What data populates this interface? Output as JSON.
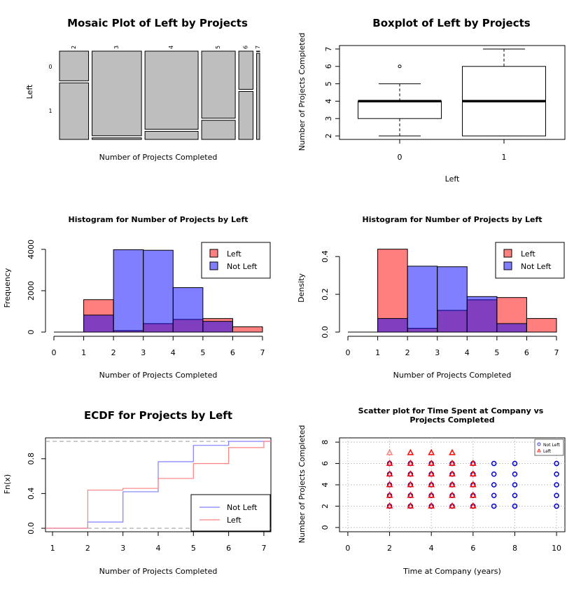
{
  "chart_data": [
    {
      "type": "mosaic",
      "title": "Mosaic Plot of Left by Projects",
      "xlabel": "Number of Projects Completed",
      "ylabel": "Left",
      "categories": [
        "2",
        "3",
        "4",
        "5",
        "6",
        "7"
      ],
      "column_totals": [
        2388,
        4055,
        4365,
        2761,
        1174,
        256
      ],
      "left_share": [
        0.656,
        0.018,
        0.094,
        0.222,
        0.557,
        1.0
      ],
      "row_labels": [
        "0",
        "1"
      ]
    },
    {
      "type": "boxplot",
      "title": "Boxplot of Left by Projects",
      "xlabel": "Left",
      "ylabel": "Number of Projects Completed",
      "categories": [
        "0",
        "1"
      ],
      "boxes": [
        {
          "min": 2,
          "q1": 3,
          "median": 4,
          "q3": 4,
          "max": 5,
          "outliers": [
            6
          ]
        },
        {
          "min": 2,
          "q1": 2,
          "median": 4,
          "q3": 6,
          "max": 7,
          "outliers": []
        }
      ],
      "ylim": [
        1.8,
        7.2
      ],
      "yticks": [
        2,
        3,
        4,
        5,
        6,
        7
      ]
    },
    {
      "type": "histogram",
      "title": "Histogram for Number of Projects by Left",
      "xlabel": "Number of Projects Completed",
      "ylabel": "Frequency",
      "bins": [
        1,
        2,
        3,
        4,
        5,
        6,
        7
      ],
      "series": [
        {
          "name": "Left",
          "color": "#ff8080",
          "values": [
            1567,
            72,
            409,
            612,
            655,
            256
          ]
        },
        {
          "name": "Not Left",
          "color": "#8080ff",
          "values": [
            821,
            3983,
            3956,
            2149,
            519,
            0
          ]
        }
      ],
      "xlim": [
        0,
        7
      ],
      "xticks": [
        0,
        1,
        2,
        3,
        4,
        5,
        6,
        7
      ],
      "yticks": [
        0,
        2000,
        4000
      ],
      "ylim": [
        0,
        4200
      ],
      "legend": "top-right"
    },
    {
      "type": "histogram",
      "title": "Histogram for Number of Projects by Left",
      "xlabel": "Number of Projects Completed",
      "ylabel": "Density",
      "bins": [
        1,
        2,
        3,
        4,
        5,
        6,
        7
      ],
      "series": [
        {
          "name": "Left",
          "color": "#ff8080",
          "values": [
            0.439,
            0.02,
            0.115,
            0.171,
            0.183,
            0.072
          ]
        },
        {
          "name": "Not Left",
          "color": "#8080ff",
          "values": [
            0.072,
            0.349,
            0.346,
            0.188,
            0.045,
            0.0
          ]
        }
      ],
      "xlim": [
        0,
        7
      ],
      "xticks": [
        0,
        1,
        2,
        3,
        4,
        5,
        6,
        7
      ],
      "yticks": [
        "0.0",
        "0.2",
        "0.4"
      ],
      "ylim": [
        0,
        0.46
      ],
      "legend": "top-right"
    },
    {
      "type": "line",
      "title": "ECDF for Projects by Left",
      "xlabel": "Number of Projects Completed",
      "ylabel": "Fn(x)",
      "series": [
        {
          "name": "Not Left",
          "color": "#8080ff",
          "x": [
            1,
            2,
            3,
            4,
            5,
            6,
            7
          ],
          "y": [
            0.0,
            0.072,
            0.42,
            0.766,
            0.954,
            1.0,
            1.0
          ]
        },
        {
          "name": "Left",
          "color": "#ff8080",
          "x": [
            1,
            2,
            3,
            4,
            5,
            6,
            7
          ],
          "y": [
            0.0,
            0.439,
            0.459,
            0.573,
            0.745,
            0.928,
            1.0
          ]
        }
      ],
      "xlim": [
        0.8,
        7.2
      ],
      "xticks": [
        1,
        2,
        3,
        4,
        5,
        6,
        7
      ],
      "yticks": [
        "0.0",
        "0.4",
        "0.8"
      ],
      "ylim": [
        -0.04,
        1.04
      ],
      "legend": "bottom-right"
    },
    {
      "type": "scatter",
      "title": "Scatter plot for Time Spent at Company vs Projects Completed",
      "xlabel": "Time at Company (years)",
      "ylabel": "Number of Projects Completed",
      "series": [
        {
          "name": "Not Left",
          "color": "#0000cc",
          "marker": "circle",
          "points": [
            [
              2,
              2
            ],
            [
              2,
              3
            ],
            [
              2,
              4
            ],
            [
              2,
              5
            ],
            [
              2,
              6
            ],
            [
              3,
              2
            ],
            [
              3,
              3
            ],
            [
              3,
              4
            ],
            [
              3,
              5
            ],
            [
              3,
              6
            ],
            [
              4,
              2
            ],
            [
              4,
              3
            ],
            [
              4,
              4
            ],
            [
              4,
              5
            ],
            [
              4,
              6
            ],
            [
              5,
              2
            ],
            [
              5,
              3
            ],
            [
              5,
              4
            ],
            [
              5,
              5
            ],
            [
              5,
              6
            ],
            [
              6,
              2
            ],
            [
              6,
              3
            ],
            [
              6,
              4
            ],
            [
              6,
              5
            ],
            [
              6,
              6
            ],
            [
              7,
              2
            ],
            [
              7,
              3
            ],
            [
              7,
              4
            ],
            [
              7,
              5
            ],
            [
              7,
              6
            ],
            [
              8,
              2
            ],
            [
              8,
              3
            ],
            [
              8,
              4
            ],
            [
              8,
              5
            ],
            [
              8,
              6
            ],
            [
              10,
              2
            ],
            [
              10,
              3
            ],
            [
              10,
              4
            ],
            [
              10,
              5
            ],
            [
              10,
              6
            ]
          ]
        },
        {
          "name": "Left",
          "color": "#ff0000",
          "marker": "triangle",
          "points": [
            [
              2,
              2
            ],
            [
              2,
              3
            ],
            [
              2,
              4
            ],
            [
              2,
              5
            ],
            [
              2,
              6
            ],
            [
              2,
              7
            ],
            [
              3,
              2
            ],
            [
              3,
              3
            ],
            [
              3,
              4
            ],
            [
              3,
              5
            ],
            [
              3,
              6
            ],
            [
              3,
              7
            ],
            [
              4,
              2
            ],
            [
              4,
              3
            ],
            [
              4,
              4
            ],
            [
              4,
              5
            ],
            [
              4,
              6
            ],
            [
              4,
              7
            ],
            [
              5,
              2
            ],
            [
              5,
              3
            ],
            [
              5,
              4
            ],
            [
              5,
              5
            ],
            [
              5,
              6
            ],
            [
              5,
              7
            ],
            [
              6,
              2
            ],
            [
              6,
              3
            ],
            [
              6,
              4
            ],
            [
              6,
              5
            ],
            [
              6,
              6
            ]
          ]
        }
      ],
      "xlim": [
        -0.4,
        10.4
      ],
      "ylim": [
        -0.4,
        8.4
      ],
      "xticks": [
        0,
        2,
        4,
        6,
        8,
        10
      ],
      "yticks": [
        0,
        2,
        4,
        6,
        8
      ],
      "grid": true,
      "legend": "top-right"
    }
  ]
}
